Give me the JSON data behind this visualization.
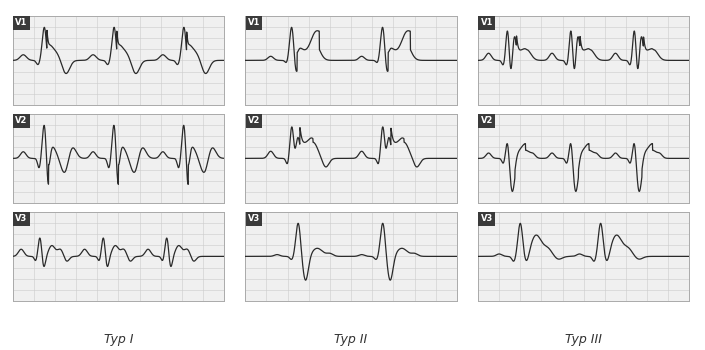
{
  "background_color": "#f0f0f0",
  "grid_color": "#cccccc",
  "ecg_color": "#2a2a2a",
  "border_color": "#aaaaaa",
  "label_bg_color": "#3a3a3a",
  "label_text_color": "#ffffff",
  "title_color": "#333333",
  "panel_titles": [
    "Typ I",
    "Typ II",
    "Typ III"
  ],
  "lead_labels": [
    "V1",
    "V2",
    "V3"
  ],
  "lw": 0.9,
  "title_fontsize": 9.0,
  "label_fontsize": 6.0,
  "fig_bg": "#ffffff"
}
